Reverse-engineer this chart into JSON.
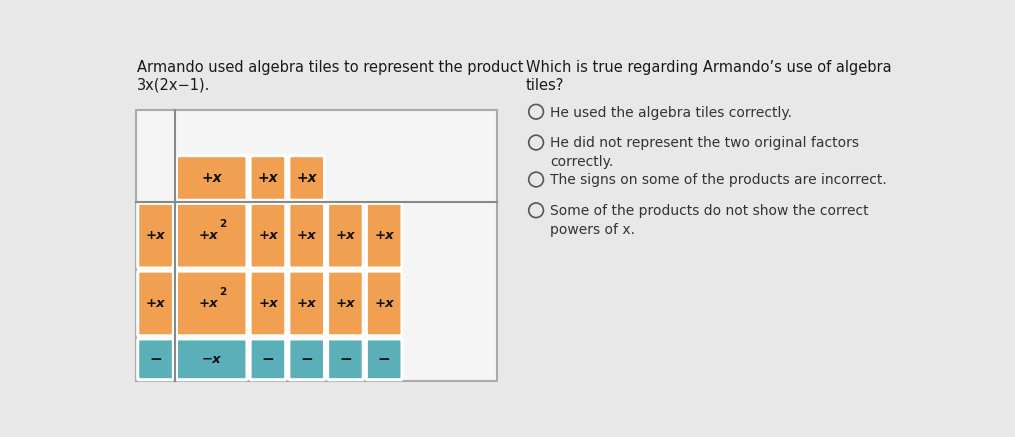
{
  "title_left": "Armando used algebra tiles to represent the product\n3x(2x−1).",
  "title_right": "Which is true regarding Armando’s use of algebra\ntiles?",
  "options": [
    "He used the algebra tiles correctly.",
    "He did not represent the two original factors\ncorrectly.",
    "The signs on some of the products are incorrect.",
    "Some of the products do not show the correct\npowers of x."
  ],
  "bg_color": "#e8e8e8",
  "tile_orange": "#f0a050",
  "tile_teal": "#5aafb8",
  "tile_border": "#ffffff",
  "grid_line": "#aaaaaa",
  "text_color": "#1a1a1a",
  "option_text_color": "#333333",
  "grid_bg": "#f5f5f5",
  "divider_color": "#888888"
}
